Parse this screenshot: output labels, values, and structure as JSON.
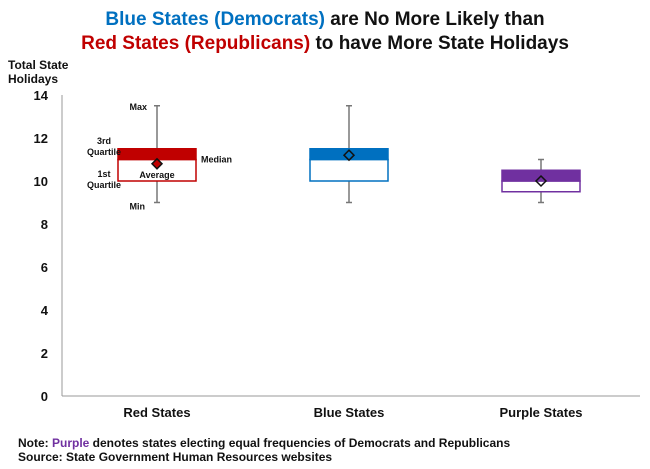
{
  "title": {
    "line1_blue": "Blue States (Democrats)",
    "line1_rest": " are No More Likely than",
    "line2_red": "Red States (Republicans)",
    "line2_rest": " to have More State Holidays"
  },
  "notes": {
    "note_prefix": "Note: ",
    "note_purple": "Purple",
    "note_rest": " denotes states electing equal frequencies of Democrats and Republicans",
    "source": "Source: State Government Human Resources websites"
  },
  "chart_data": {
    "type": "boxplot",
    "ylabel": "Total State Holidays",
    "ylim": [
      0,
      14
    ],
    "yticks": [
      0,
      2,
      4,
      6,
      8,
      10,
      12,
      14
    ],
    "grid": false,
    "categories": [
      "Red States",
      "Blue States",
      "Purple States"
    ],
    "series": [
      {
        "category": "Red States",
        "color": "#c00000",
        "min": 9,
        "q1": 10,
        "median": 11,
        "q3": 11.5,
        "max": 13.5,
        "average": 10.8
      },
      {
        "category": "Blue States",
        "color": "#0070c0",
        "min": 9,
        "q1": 10,
        "median": 11,
        "q3": 11.5,
        "max": 13.5,
        "average": 11.2
      },
      {
        "category": "Purple States",
        "color": "#7030a0",
        "min": 9,
        "q1": 9.5,
        "median": 10,
        "q3": 10.5,
        "max": 11,
        "average": 10
      }
    ],
    "annotations": {
      "max": "Max",
      "q3": "3rd Quartile",
      "median": "Median",
      "q1": "1st Quartile",
      "average": "Average",
      "min": "Min"
    }
  }
}
